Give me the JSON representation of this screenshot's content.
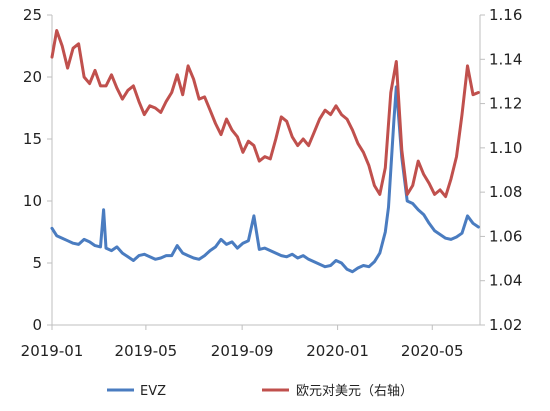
{
  "chart_data": {
    "type": "line",
    "title": "",
    "xlabel": "",
    "ylabel": "",
    "y2label": "",
    "x_tick_labels": [
      "2019-01",
      "2019-05",
      "2019-09",
      "2020-01",
      "2020-05"
    ],
    "x_ticks": [
      "2019-01-01",
      "2019-05-01",
      "2019-09-01",
      "2020-01-01",
      "2020-05-01"
    ],
    "xlim": [
      "2019-01-01",
      "2020-07-01"
    ],
    "ylim_left": [
      0,
      25
    ],
    "yticks_left": [
      0,
      5,
      10,
      15,
      20,
      25
    ],
    "ylim_right": [
      1.02,
      1.16
    ],
    "yticks_right": [
      1.02,
      1.04,
      1.06,
      1.08,
      1.1,
      1.12,
      1.14,
      1.16
    ],
    "y_right_tick_labels": [
      "1.02",
      "1.04",
      "1.06",
      "1.08",
      "1.10",
      "1.12",
      "1.14",
      "1.16"
    ],
    "grid": false,
    "legend_position": "bottom",
    "series": [
      {
        "name": "EVZ",
        "axis": "left",
        "color": "#4a7cc0",
        "x": [
          "2019-01-01",
          "2019-01-07",
          "2019-01-14",
          "2019-01-21",
          "2019-01-28",
          "2019-02-04",
          "2019-02-11",
          "2019-02-18",
          "2019-02-25",
          "2019-03-04",
          "2019-03-08",
          "2019-03-11",
          "2019-03-18",
          "2019-03-25",
          "2019-04-01",
          "2019-04-08",
          "2019-04-15",
          "2019-04-22",
          "2019-04-29",
          "2019-05-06",
          "2019-05-13",
          "2019-05-20",
          "2019-05-27",
          "2019-06-03",
          "2019-06-10",
          "2019-06-17",
          "2019-06-24",
          "2019-07-01",
          "2019-07-08",
          "2019-07-15",
          "2019-07-22",
          "2019-07-29",
          "2019-08-05",
          "2019-08-12",
          "2019-08-19",
          "2019-08-26",
          "2019-09-02",
          "2019-09-09",
          "2019-09-16",
          "2019-09-23",
          "2019-09-30",
          "2019-10-07",
          "2019-10-14",
          "2019-10-21",
          "2019-10-28",
          "2019-11-04",
          "2019-11-11",
          "2019-11-18",
          "2019-11-25",
          "2019-12-02",
          "2019-12-09",
          "2019-12-16",
          "2019-12-23",
          "2019-12-30",
          "2020-01-06",
          "2020-01-13",
          "2020-01-20",
          "2020-01-27",
          "2020-02-03",
          "2020-02-10",
          "2020-02-17",
          "2020-02-24",
          "2020-03-02",
          "2020-03-06",
          "2020-03-09",
          "2020-03-13",
          "2020-03-16",
          "2020-03-20",
          "2020-03-23",
          "2020-03-27",
          "2020-03-30",
          "2020-04-06",
          "2020-04-13",
          "2020-04-20",
          "2020-04-27",
          "2020-05-04",
          "2020-05-11",
          "2020-05-18",
          "2020-05-25",
          "2020-06-01",
          "2020-06-08",
          "2020-06-15",
          "2020-06-22",
          "2020-06-29"
        ],
        "values": [
          7.8,
          7.2,
          7.0,
          6.8,
          6.6,
          6.5,
          6.9,
          6.7,
          6.4,
          6.3,
          9.3,
          6.2,
          6.0,
          6.3,
          5.8,
          5.5,
          5.2,
          5.6,
          5.7,
          5.5,
          5.3,
          5.4,
          5.6,
          5.6,
          6.4,
          5.8,
          5.6,
          5.4,
          5.3,
          5.6,
          6.0,
          6.3,
          6.9,
          6.5,
          6.7,
          6.2,
          6.6,
          6.8,
          8.8,
          6.1,
          6.2,
          6.0,
          5.8,
          5.6,
          5.5,
          5.7,
          5.4,
          5.6,
          5.3,
          5.1,
          4.9,
          4.7,
          4.8,
          5.2,
          5.0,
          4.5,
          4.3,
          4.6,
          4.8,
          4.7,
          5.1,
          5.8,
          7.5,
          9.5,
          12.5,
          16.5,
          19.2,
          16.0,
          13.5,
          11.5,
          10.0,
          9.8,
          9.3,
          8.9,
          8.2,
          7.6,
          7.3,
          7.0,
          6.9,
          7.1,
          7.4,
          8.8,
          8.2,
          7.9
        ]
      },
      {
        "name": "欧元对美元（右轴）",
        "axis": "right",
        "color": "#c0504d",
        "x": [
          "2019-01-01",
          "2019-01-07",
          "2019-01-14",
          "2019-01-21",
          "2019-01-28",
          "2019-02-04",
          "2019-02-11",
          "2019-02-18",
          "2019-02-25",
          "2019-03-04",
          "2019-03-11",
          "2019-03-18",
          "2019-03-25",
          "2019-04-01",
          "2019-04-08",
          "2019-04-15",
          "2019-04-22",
          "2019-04-29",
          "2019-05-06",
          "2019-05-13",
          "2019-05-20",
          "2019-05-27",
          "2019-06-03",
          "2019-06-10",
          "2019-06-17",
          "2019-06-24",
          "2019-07-01",
          "2019-07-08",
          "2019-07-15",
          "2019-07-22",
          "2019-07-29",
          "2019-08-05",
          "2019-08-12",
          "2019-08-19",
          "2019-08-26",
          "2019-09-02",
          "2019-09-09",
          "2019-09-16",
          "2019-09-23",
          "2019-09-30",
          "2019-10-07",
          "2019-10-14",
          "2019-10-21",
          "2019-10-28",
          "2019-11-04",
          "2019-11-11",
          "2019-11-18",
          "2019-11-25",
          "2019-12-02",
          "2019-12-09",
          "2019-12-16",
          "2019-12-23",
          "2019-12-30",
          "2020-01-06",
          "2020-01-13",
          "2020-01-20",
          "2020-01-27",
          "2020-02-03",
          "2020-02-10",
          "2020-02-17",
          "2020-02-24",
          "2020-03-02",
          "2020-03-09",
          "2020-03-16",
          "2020-03-23",
          "2020-03-30",
          "2020-04-06",
          "2020-04-13",
          "2020-04-20",
          "2020-04-27",
          "2020-05-04",
          "2020-05-11",
          "2020-05-18",
          "2020-05-25",
          "2020-06-01",
          "2020-06-08",
          "2020-06-15",
          "2020-06-22",
          "2020-06-29"
        ],
        "values": [
          1.141,
          1.153,
          1.146,
          1.136,
          1.145,
          1.147,
          1.132,
          1.129,
          1.135,
          1.128,
          1.128,
          1.133,
          1.127,
          1.122,
          1.126,
          1.128,
          1.121,
          1.115,
          1.119,
          1.118,
          1.116,
          1.121,
          1.125,
          1.133,
          1.124,
          1.137,
          1.131,
          1.122,
          1.123,
          1.117,
          1.111,
          1.106,
          1.113,
          1.108,
          1.105,
          1.098,
          1.103,
          1.101,
          1.094,
          1.096,
          1.095,
          1.104,
          1.114,
          1.112,
          1.105,
          1.101,
          1.104,
          1.101,
          1.107,
          1.113,
          1.117,
          1.115,
          1.119,
          1.115,
          1.113,
          1.108,
          1.102,
          1.098,
          1.092,
          1.083,
          1.079,
          1.091,
          1.125,
          1.139,
          1.099,
          1.079,
          1.083,
          1.094,
          1.088,
          1.084,
          1.079,
          1.081,
          1.078,
          1.086,
          1.096,
          1.115,
          1.137,
          1.124,
          1.125
        ]
      }
    ]
  }
}
